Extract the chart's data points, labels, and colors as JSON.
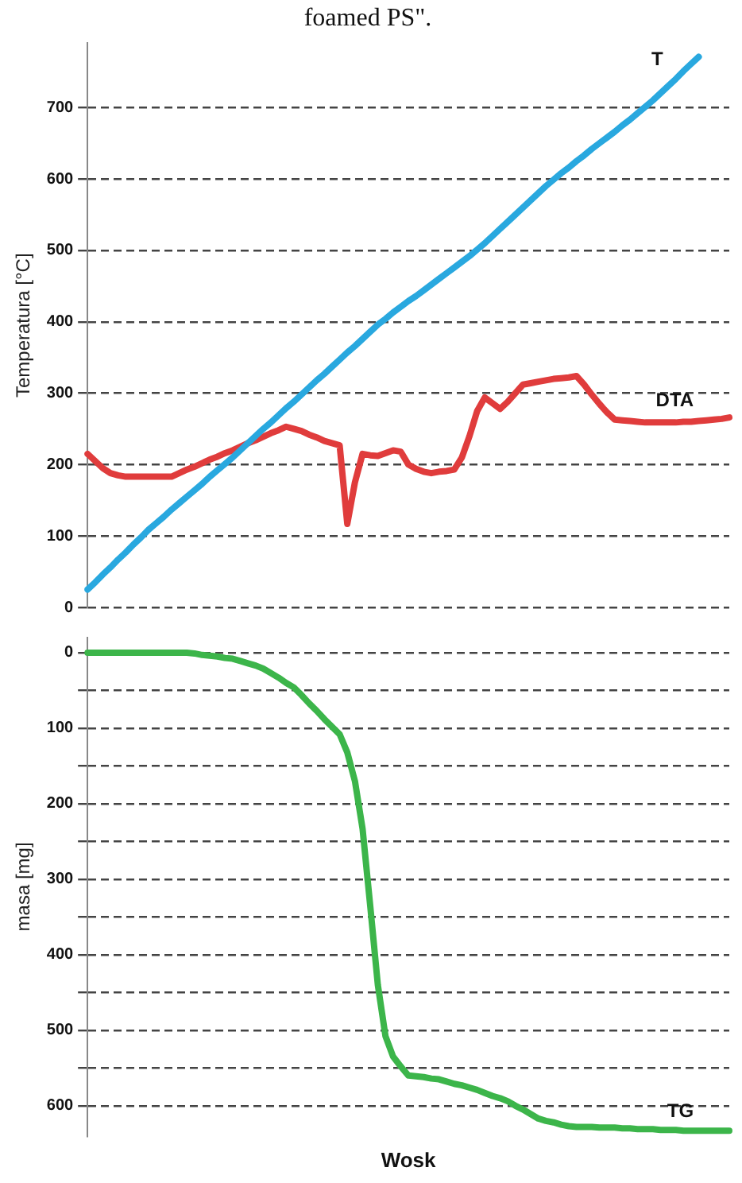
{
  "chart_data": [
    {
      "type": "line",
      "title": "foamed PS\".",
      "ylabel": "Temperatura [°C]",
      "categories": [
        null,
        null,
        null,
        null,
        null,
        null,
        null,
        null,
        null,
        null,
        null,
        null,
        null,
        null,
        null,
        null,
        null,
        null,
        null,
        null,
        null,
        null,
        null,
        null,
        null,
        null,
        null,
        null,
        null,
        null,
        null,
        null,
        null,
        null,
        null,
        null,
        null,
        null,
        null,
        null,
        null,
        null,
        null,
        null,
        null,
        null,
        null,
        null,
        null,
        null,
        null,
        null,
        null,
        null,
        null,
        null,
        null,
        null,
        null,
        null,
        null,
        null,
        null,
        null,
        null,
        null,
        null,
        null,
        null,
        null,
        null,
        null,
        null,
        null,
        null,
        null,
        null,
        null,
        null,
        null,
        null,
        null,
        null,
        null,
        null
      ],
      "series": [
        {
          "name": "T",
          "color": "#29a8df",
          "values": [
            25,
            35,
            46,
            56,
            67,
            77,
            88,
            98,
            109,
            118,
            127,
            137,
            146,
            155,
            164,
            173,
            183,
            192,
            201,
            210,
            220,
            230,
            240,
            250,
            259,
            269,
            279,
            288,
            298,
            308,
            318,
            327,
            337,
            347,
            357,
            366,
            376,
            386,
            396,
            404,
            413,
            421,
            429,
            436,
            444,
            452,
            460,
            468,
            476,
            484,
            492,
            501,
            510,
            520,
            530,
            540,
            550,
            560,
            570,
            580,
            590,
            599,
            608,
            616,
            625,
            633,
            642,
            650,
            658,
            666,
            675,
            683,
            692,
            701,
            710,
            720,
            730,
            740,
            751,
            761,
            771,
            null,
            null,
            null,
            null
          ]
        },
        {
          "name": "DTA",
          "color": "#e03c3c",
          "values": [
            215,
            205,
            195,
            188,
            185,
            183,
            183,
            183,
            183,
            183,
            183,
            183,
            188,
            193,
            197,
            202,
            207,
            211,
            216,
            220,
            225,
            230,
            234,
            239,
            244,
            248,
            253,
            250,
            247,
            242,
            238,
            233,
            230,
            227,
            117,
            175,
            215,
            213,
            212,
            216,
            220,
            218,
            200,
            194,
            190,
            188,
            190,
            191,
            193,
            210,
            240,
            275,
            294,
            286,
            278,
            288,
            300,
            312,
            314,
            316,
            318,
            320,
            321,
            322,
            324,
            312,
            298,
            285,
            273,
            263,
            262,
            261,
            260,
            259,
            259,
            259,
            259,
            259,
            260,
            260,
            261,
            262,
            263,
            264,
            266
          ]
        }
      ],
      "ylim": [
        0,
        790
      ],
      "yticks": [
        0,
        100,
        200,
        300,
        400,
        500,
        600,
        700
      ],
      "grid": "y",
      "tick_labels": "y",
      "legend": false,
      "marker": "none",
      "line_style": "solid"
    },
    {
      "type": "line",
      "ylabel": "masa [mg]",
      "xlabel": "Wosk",
      "categories": [
        null,
        null,
        null,
        null,
        null,
        null,
        null,
        null,
        null,
        null,
        null,
        null,
        null,
        null,
        null,
        null,
        null,
        null,
        null,
        null,
        null,
        null,
        null,
        null,
        null,
        null,
        null,
        null,
        null,
        null,
        null,
        null,
        null,
        null,
        null,
        null,
        null,
        null,
        null,
        null,
        null,
        null,
        null,
        null,
        null,
        null,
        null,
        null,
        null,
        null,
        null,
        null,
        null,
        null,
        null,
        null,
        null,
        null,
        null,
        null,
        null,
        null,
        null,
        null,
        null,
        null,
        null,
        null,
        null,
        null,
        null,
        null,
        null,
        null,
        null,
        null,
        null,
        null,
        null,
        null,
        null,
        null,
        null,
        null,
        null
      ],
      "series": [
        {
          "name": "TG",
          "color": "#3cb54a",
          "values": [
            0,
            0,
            0,
            0,
            0,
            0,
            0,
            0,
            0,
            0,
            0,
            0,
            0,
            0,
            1,
            3,
            4,
            5,
            7,
            8,
            11,
            14,
            17,
            21,
            27,
            33,
            40,
            46,
            56,
            67,
            77,
            88,
            98,
            108,
            132,
            170,
            233,
            335,
            440,
            508,
            535,
            548,
            560,
            561,
            562,
            564,
            565,
            568,
            571,
            573,
            576,
            579,
            583,
            587,
            590,
            594,
            600,
            605,
            611,
            617,
            620,
            622,
            625,
            627,
            628,
            628,
            628,
            629,
            629,
            629,
            630,
            630,
            631,
            631,
            631,
            632,
            632,
            632,
            633,
            633,
            633,
            633,
            633,
            633,
            633
          ]
        }
      ],
      "ylim": [
        640,
        -20
      ],
      "yticks": [
        0,
        {
          "value": 50,
          "label": null
        },
        100,
        {
          "value": 150,
          "label": null
        },
        200,
        {
          "value": 250,
          "label": null
        },
        300,
        {
          "value": 350,
          "label": null
        },
        400,
        {
          "value": 450,
          "label": null
        },
        500,
        {
          "value": 550,
          "label": null
        },
        600
      ],
      "grid": "y",
      "tick_labels": "y",
      "legend": false,
      "marker": "none",
      "line_style": "solid"
    }
  ]
}
